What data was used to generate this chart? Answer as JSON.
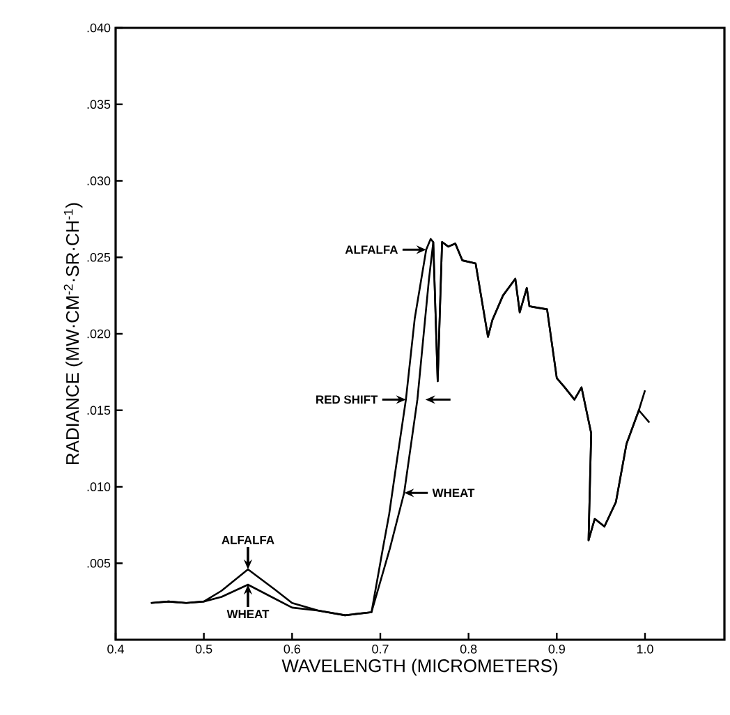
{
  "chart_data": {
    "type": "line",
    "xlabel": "WAVELENGTH (MICROMETERS)",
    "ylabel": "RADIANCE (MW·CM$^{-2}$·SR·CH$^{-1}$)",
    "xlim": [
      0.4,
      1.09
    ],
    "ylim": [
      0,
      0.04
    ],
    "xticks": [
      0.4,
      0.5,
      0.6,
      0.7,
      0.8,
      0.9,
      {
        "value": 1,
        "label": "1.0"
      }
    ],
    "yticks": [
      {
        "value": 0.005,
        "label": ".005"
      },
      {
        "value": 0.01,
        "label": ".010"
      },
      {
        "value": 0.015,
        "label": ".015"
      },
      {
        "value": 0.02,
        "label": ".020"
      },
      {
        "value": 0.025,
        "label": ".025"
      },
      {
        "value": 0.03,
        "label": ".030"
      },
      {
        "value": 0.035,
        "label": ".035"
      },
      {
        "value": 0.04,
        "label": ".040"
      }
    ],
    "grid": false,
    "marker": "none",
    "line_style": "solid",
    "series": [
      {
        "color": "#000000",
        "x": [
          0.44,
          0.46,
          0.48,
          0.5,
          0.52,
          0.55,
          0.58,
          0.6,
          0.63,
          0.66,
          0.69,
          0.703,
          0.71,
          0.718,
          0.729,
          0.739,
          0.752,
          0.757,
          0.76,
          0.765,
          0.77,
          0.777,
          0.785,
          0.793,
          0.808,
          0.822,
          0.827,
          0.839,
          0.853,
          0.858,
          0.866,
          0.869,
          0.889,
          0.9,
          0.909,
          0.92,
          0.928,
          0.939,
          0.936,
          0.943,
          0.954,
          0.967,
          0.979,
          0.993,
          1.0
        ],
        "values": [
          0.0024,
          0.0025,
          0.0024,
          0.0025,
          0.0032,
          0.0046,
          0.0033,
          0.0024,
          0.0019,
          0.0016,
          0.0018,
          0.006,
          0.0082,
          0.0114,
          0.0157,
          0.021,
          0.0255,
          0.0262,
          0.026,
          0.0169,
          0.026,
          0.0257,
          0.0259,
          0.0248,
          0.0246,
          0.0198,
          0.0209,
          0.0225,
          0.0236,
          0.0214,
          0.023,
          0.0218,
          0.0216,
          0.0171,
          0.0165,
          0.0157,
          0.0165,
          0.0135,
          0.0065,
          0.0079,
          0.0074,
          0.009,
          0.0128,
          0.015,
          0.0163
        ]
      },
      {
        "color": "#000000",
        "x": [
          0.44,
          0.46,
          0.48,
          0.5,
          0.52,
          0.55,
          0.58,
          0.6,
          0.63,
          0.66,
          0.69,
          0.711,
          0.727,
          0.742,
          0.755,
          0.76,
          0.765,
          0.77,
          0.777,
          0.785,
          0.793,
          0.808,
          0.822,
          0.827,
          0.839,
          0.853,
          0.858,
          0.866,
          0.869,
          0.889,
          0.9,
          0.909,
          0.92,
          0.928,
          0.939,
          0.936,
          0.943,
          0.954,
          0.967,
          0.979,
          0.993,
          1.005
        ],
        "values": [
          0.0024,
          0.0025,
          0.0024,
          0.0025,
          0.0028,
          0.0036,
          0.0027,
          0.0021,
          0.0019,
          0.0016,
          0.0018,
          0.006,
          0.0096,
          0.0157,
          0.0235,
          0.026,
          0.0169,
          0.026,
          0.0257,
          0.0259,
          0.0248,
          0.0246,
          0.0198,
          0.0209,
          0.0225,
          0.0236,
          0.0214,
          0.023,
          0.0218,
          0.0216,
          0.0171,
          0.0165,
          0.0157,
          0.0165,
          0.0135,
          0.0065,
          0.0079,
          0.0074,
          0.009,
          0.0128,
          0.015,
          0.0142
        ]
      }
    ],
    "annotations": [
      {
        "text": "ALFALFA",
        "x": 0.752,
        "y": 0.0255
      },
      {
        "text": "RED SHIFT",
        "x": 0.729,
        "y": 0.0157
      },
      {
        "text": "WHEAT",
        "x": 0.727,
        "y": 0.0096
      },
      {
        "text": "ALFALFA",
        "x": 0.55,
        "y": 0.0046
      },
      {
        "text": "WHEAT",
        "x": 0.55,
        "y": 0.0036
      }
    ]
  }
}
